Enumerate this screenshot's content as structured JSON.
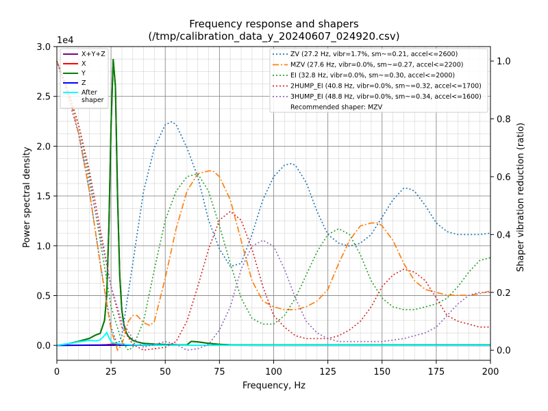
{
  "chart_data": {
    "type": "line",
    "title": "Frequency response and shapers",
    "subtitle": "(/tmp/calibration_data_y_20240607_024920.csv)",
    "xlabel": "Frequency, Hz",
    "ylabel": "Power spectral density",
    "y2label": "Shaper vibration reduction (ratio)",
    "y_offset_label": "1e4",
    "xlim": [
      0,
      200
    ],
    "ylim": [
      -1500,
      30000
    ],
    "y2lim": [
      -0.035,
      1.05
    ],
    "x_ticks": [
      0,
      25,
      50,
      75,
      100,
      125,
      150,
      175,
      200
    ],
    "y_ticks": [
      0,
      5000,
      10000,
      15000,
      20000,
      25000,
      30000
    ],
    "y_tick_labels": [
      "0.0",
      "0.5",
      "1.0",
      "1.5",
      "2.0",
      "2.5",
      "3.0"
    ],
    "y2_ticks": [
      0.0,
      0.2,
      0.4,
      0.6,
      0.8,
      1.0
    ],
    "y2_tick_labels": [
      "0.0",
      "0.2",
      "0.4",
      "0.6",
      "0.8",
      "1.0"
    ],
    "grid": true,
    "minor_grid": true,
    "psd_legend_placement": "top-left",
    "shaper_legend_placement": "top-right",
    "psd_series": [
      {
        "name": "X+Y+Z",
        "color": "#800080",
        "style": "solid",
        "x": [
          0,
          5,
          10,
          15,
          18,
          20,
          22,
          23,
          24,
          25,
          26,
          27,
          28,
          29,
          30,
          31,
          32,
          33,
          35,
          37,
          40,
          45,
          50,
          55,
          60,
          62,
          65,
          70,
          75,
          80,
          100,
          150,
          200
        ],
        "values": [
          0,
          150,
          400,
          700,
          1050,
          1200,
          2500,
          5000,
          12000,
          22000,
          28700,
          26000,
          15000,
          7000,
          3500,
          2000,
          1300,
          900,
          500,
          350,
          200,
          120,
          80,
          50,
          50,
          400,
          350,
          200,
          100,
          50,
          50,
          50,
          50
        ]
      },
      {
        "name": "X",
        "color": "#ff0000",
        "style": "solid",
        "x": [
          0,
          10,
          20,
          23,
          25,
          26,
          27,
          28,
          30,
          35,
          40,
          200
        ],
        "values": [
          0,
          20,
          40,
          60,
          100,
          150,
          120,
          80,
          40,
          20,
          10,
          0
        ]
      },
      {
        "name": "Y",
        "color": "#008000",
        "style": "solid",
        "x": [
          0,
          5,
          10,
          15,
          18,
          20,
          22,
          23,
          24,
          25,
          26,
          27,
          28,
          29,
          30,
          31,
          32,
          33,
          35,
          37,
          40,
          45,
          50,
          55,
          60,
          62,
          65,
          70,
          75,
          80,
          100,
          150,
          200
        ],
        "values": [
          0,
          150,
          400,
          700,
          1050,
          1200,
          2500,
          5000,
          12000,
          22000,
          28700,
          26000,
          15000,
          7000,
          3500,
          2000,
          1300,
          900,
          500,
          350,
          200,
          120,
          80,
          50,
          50,
          400,
          350,
          200,
          100,
          50,
          50,
          50,
          50
        ]
      },
      {
        "name": "Z",
        "color": "#0000ff",
        "style": "solid",
        "x": [
          0,
          20,
          40,
          60,
          80,
          100,
          150,
          200
        ],
        "values": [
          0,
          10,
          20,
          15,
          10,
          5,
          5,
          5
        ]
      },
      {
        "name": "After\nshaper",
        "color": "#00ffff",
        "style": "solid",
        "x": [
          0,
          5,
          10,
          15,
          18,
          20,
          22,
          23,
          24,
          25,
          26,
          27,
          28,
          30,
          32,
          35,
          40,
          45,
          50,
          200
        ],
        "values": [
          0,
          150,
          350,
          500,
          450,
          550,
          1000,
          1300,
          800,
          400,
          250,
          200,
          180,
          120,
          80,
          50,
          30,
          20,
          10,
          5
        ]
      }
    ],
    "shaper_series": [
      {
        "name": "ZV (27.2 Hz, vibr=1.7%, sm~=0.21, accel<=2600)",
        "color": "#1f77b4",
        "style": "dotted",
        "x": [
          0,
          5,
          10,
          15,
          20,
          25,
          28,
          30,
          35,
          40,
          45,
          50,
          53,
          55,
          60,
          65,
          70,
          75,
          80,
          85,
          90,
          95,
          100,
          105,
          108,
          110,
          115,
          120,
          125,
          130,
          135,
          140,
          145,
          150,
          155,
          160,
          162,
          165,
          170,
          175,
          180,
          185,
          190,
          195,
          200
        ],
        "values": [
          1.0,
          0.88,
          0.75,
          0.55,
          0.3,
          0.08,
          0.017,
          0.05,
          0.3,
          0.55,
          0.7,
          0.78,
          0.79,
          0.78,
          0.7,
          0.6,
          0.45,
          0.35,
          0.29,
          0.3,
          0.4,
          0.52,
          0.6,
          0.64,
          0.645,
          0.64,
          0.58,
          0.48,
          0.4,
          0.37,
          0.36,
          0.37,
          0.4,
          0.46,
          0.52,
          0.56,
          0.56,
          0.55,
          0.5,
          0.44,
          0.41,
          0.4,
          0.4,
          0.4,
          0.405
        ]
      },
      {
        "name": "MZV (27.6 Hz, vibr=0.0%, sm~=0.27, accel<=2200)",
        "color": "#ff7f0e",
        "style": "dashdot",
        "x": [
          0,
          5,
          10,
          15,
          20,
          25,
          28,
          30,
          33,
          35,
          37,
          40,
          43,
          45,
          50,
          55,
          60,
          65,
          70,
          72,
          75,
          80,
          85,
          90,
          95,
          100,
          105,
          110,
          115,
          120,
          125,
          130,
          135,
          140,
          145,
          148,
          150,
          155,
          160,
          165,
          170,
          175,
          180,
          185,
          190,
          195,
          200
        ],
        "values": [
          1.0,
          0.9,
          0.75,
          0.55,
          0.3,
          0.07,
          0.0,
          0.02,
          0.1,
          0.12,
          0.12,
          0.095,
          0.085,
          0.1,
          0.25,
          0.42,
          0.55,
          0.61,
          0.62,
          0.62,
          0.6,
          0.52,
          0.38,
          0.24,
          0.17,
          0.15,
          0.14,
          0.14,
          0.15,
          0.17,
          0.21,
          0.3,
          0.38,
          0.43,
          0.44,
          0.44,
          0.43,
          0.38,
          0.3,
          0.24,
          0.21,
          0.2,
          0.19,
          0.19,
          0.19,
          0.195,
          0.205
        ]
      },
      {
        "name": "EI (32.8 Hz, vibr=0.0%, sm~=0.30, accel<=2000)",
        "color": "#2ca02c",
        "style": "dotted",
        "x": [
          0,
          5,
          10,
          15,
          20,
          25,
          30,
          33,
          35,
          40,
          45,
          50,
          55,
          60,
          65,
          70,
          75,
          80,
          85,
          90,
          95,
          100,
          105,
          110,
          115,
          120,
          125,
          130,
          135,
          140,
          145,
          150,
          155,
          160,
          165,
          170,
          175,
          180,
          185,
          190,
          195,
          200
        ],
        "values": [
          1.0,
          0.9,
          0.78,
          0.6,
          0.38,
          0.15,
          0.03,
          0.0,
          0.01,
          0.1,
          0.28,
          0.45,
          0.55,
          0.6,
          0.61,
          0.55,
          0.43,
          0.3,
          0.18,
          0.11,
          0.09,
          0.09,
          0.12,
          0.18,
          0.26,
          0.34,
          0.4,
          0.42,
          0.4,
          0.33,
          0.24,
          0.18,
          0.15,
          0.14,
          0.14,
          0.15,
          0.16,
          0.18,
          0.22,
          0.27,
          0.31,
          0.32
        ]
      },
      {
        "name": "2HUMP_EI (40.8 Hz, vibr=0.0%, sm~=0.32, accel<=1700)",
        "color": "#d62728",
        "style": "dotted",
        "x": [
          0,
          5,
          10,
          15,
          20,
          25,
          30,
          35,
          40,
          45,
          50,
          55,
          60,
          65,
          70,
          75,
          80,
          85,
          90,
          95,
          100,
          105,
          110,
          115,
          120,
          125,
          130,
          135,
          140,
          145,
          150,
          155,
          160,
          165,
          170,
          175,
          180,
          185,
          190,
          195,
          200
        ],
        "values": [
          1.0,
          0.9,
          0.78,
          0.62,
          0.42,
          0.22,
          0.08,
          0.02,
          0.0,
          0.005,
          0.01,
          0.03,
          0.1,
          0.22,
          0.35,
          0.45,
          0.48,
          0.45,
          0.35,
          0.22,
          0.12,
          0.08,
          0.05,
          0.04,
          0.04,
          0.04,
          0.05,
          0.07,
          0.1,
          0.15,
          0.22,
          0.26,
          0.28,
          0.27,
          0.24,
          0.18,
          0.12,
          0.1,
          0.09,
          0.08,
          0.08
        ]
      },
      {
        "name": "3HUMP_EI (48.8 Hz, vibr=0.0%, sm~=0.34, accel<=1600)",
        "color": "#9467bd",
        "style": "dotted",
        "x": [
          0,
          5,
          10,
          15,
          20,
          25,
          30,
          35,
          40,
          45,
          50,
          55,
          60,
          65,
          70,
          75,
          80,
          85,
          90,
          95,
          100,
          105,
          110,
          115,
          120,
          125,
          130,
          135,
          140,
          145,
          150,
          155,
          160,
          165,
          170,
          175,
          180,
          185,
          190,
          195,
          200
        ],
        "values": [
          1.0,
          0.88,
          0.75,
          0.58,
          0.4,
          0.22,
          0.1,
          0.04,
          0.01,
          0.02,
          0.03,
          0.02,
          0.0,
          0.005,
          0.02,
          0.07,
          0.15,
          0.28,
          0.36,
          0.38,
          0.36,
          0.28,
          0.18,
          0.1,
          0.06,
          0.04,
          0.03,
          0.03,
          0.03,
          0.03,
          0.03,
          0.035,
          0.04,
          0.05,
          0.06,
          0.08,
          0.12,
          0.16,
          0.19,
          0.2,
          0.2
        ]
      }
    ],
    "recommended_text": "Recommended shaper: MZV"
  }
}
